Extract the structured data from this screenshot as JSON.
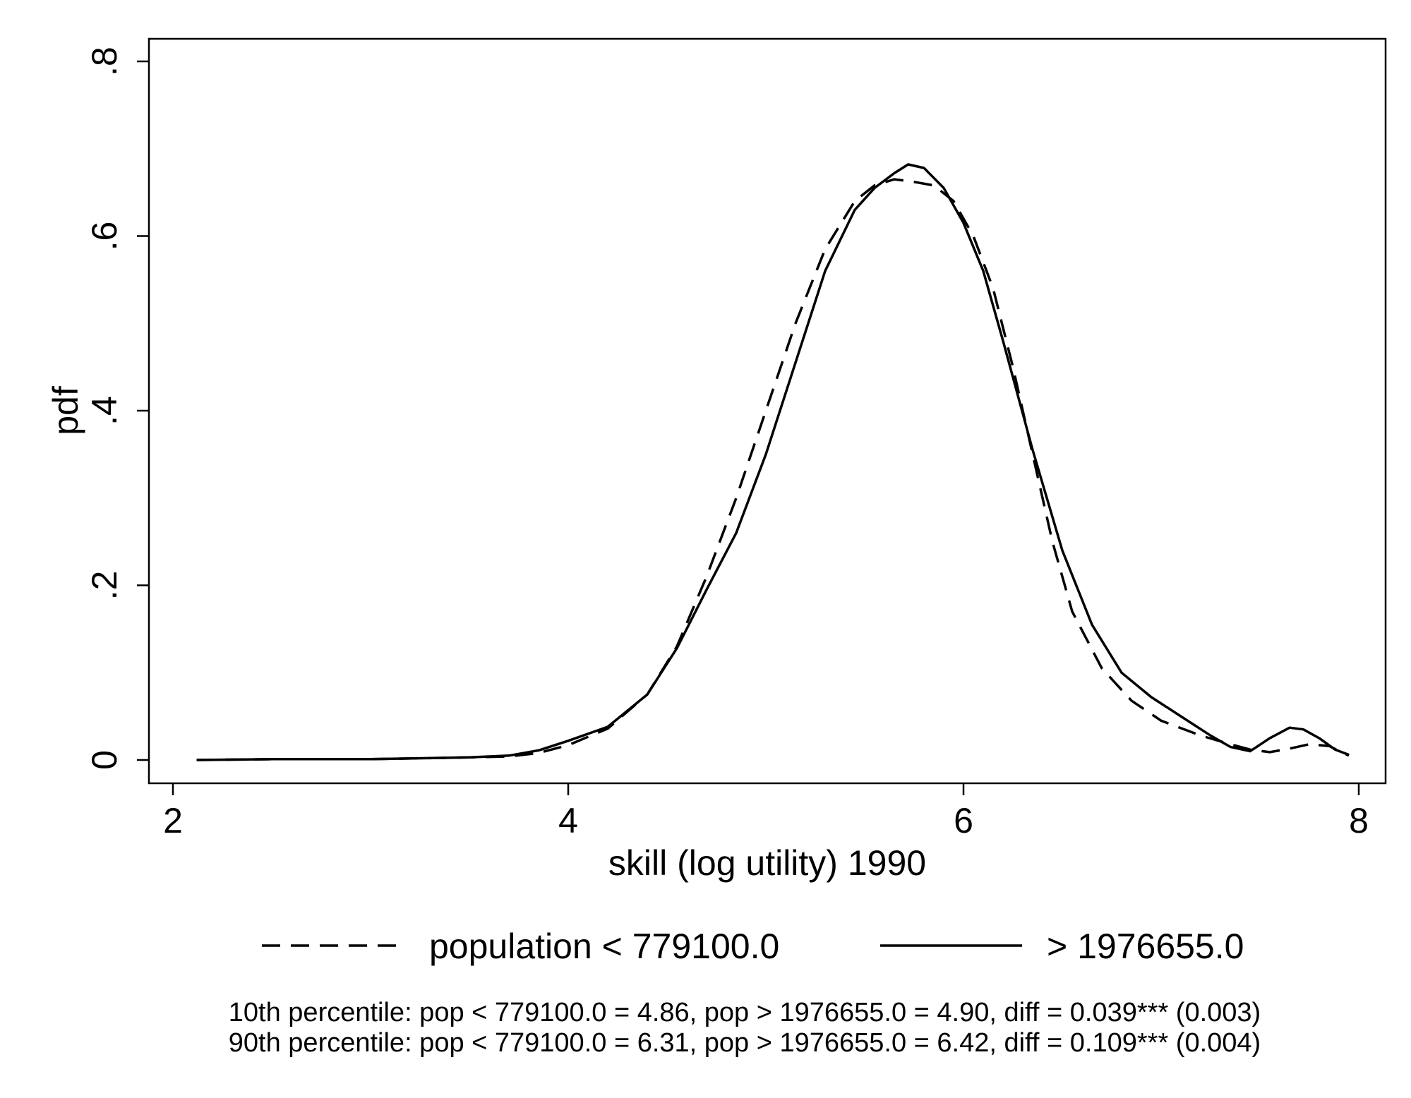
{
  "chart_data": {
    "type": "line",
    "xlabel": "skill (log utility) 1990",
    "ylabel": "pdf",
    "xlim": [
      2,
      8
    ],
    "ylim": [
      0,
      0.8
    ],
    "x_ticks": [
      2,
      4,
      6,
      8
    ],
    "x_tick_labels": [
      "2",
      "4",
      "6",
      "8"
    ],
    "y_ticks": [
      0,
      0.2,
      0.4,
      0.6,
      0.8
    ],
    "y_tick_labels": [
      "0",
      ".2",
      ".4",
      ".6",
      ".8"
    ],
    "grid": false,
    "legend_position": "bottom",
    "series": [
      {
        "name": "population < 779100.0",
        "style": "dashed",
        "color": "#000000",
        "x": [
          2.12,
          2.5,
          3.0,
          3.5,
          3.7,
          3.85,
          4.0,
          4.2,
          4.4,
          4.55,
          4.7,
          4.85,
          5.0,
          5.15,
          5.3,
          5.45,
          5.55,
          5.65,
          5.75,
          5.85,
          5.95,
          6.05,
          6.15,
          6.25,
          6.35,
          6.45,
          6.55,
          6.7,
          6.85,
          7.0,
          7.2,
          7.35,
          7.45,
          7.55,
          7.65,
          7.75,
          7.85,
          7.95
        ],
        "y": [
          0.0,
          0.001,
          0.001,
          0.003,
          0.004,
          0.008,
          0.017,
          0.036,
          0.075,
          0.13,
          0.21,
          0.3,
          0.4,
          0.5,
          0.585,
          0.64,
          0.658,
          0.665,
          0.662,
          0.658,
          0.64,
          0.6,
          0.54,
          0.45,
          0.35,
          0.25,
          0.17,
          0.105,
          0.068,
          0.045,
          0.028,
          0.018,
          0.012,
          0.009,
          0.013,
          0.018,
          0.016,
          0.005
        ]
      },
      {
        "name": "> 1976655.0",
        "style": "solid",
        "color": "#000000",
        "x": [
          2.12,
          2.5,
          3.0,
          3.5,
          3.7,
          3.85,
          4.0,
          4.2,
          4.4,
          4.55,
          4.7,
          4.85,
          5.0,
          5.15,
          5.3,
          5.45,
          5.55,
          5.65,
          5.72,
          5.8,
          5.9,
          6.0,
          6.1,
          6.2,
          6.35,
          6.5,
          6.65,
          6.8,
          6.95,
          7.1,
          7.25,
          7.35,
          7.45,
          7.55,
          7.65,
          7.72,
          7.8,
          7.88,
          7.95
        ],
        "y": [
          0.0,
          0.001,
          0.001,
          0.003,
          0.005,
          0.011,
          0.022,
          0.038,
          0.075,
          0.128,
          0.195,
          0.26,
          0.35,
          0.455,
          0.56,
          0.63,
          0.655,
          0.672,
          0.682,
          0.678,
          0.655,
          0.615,
          0.56,
          0.48,
          0.355,
          0.24,
          0.155,
          0.1,
          0.072,
          0.05,
          0.028,
          0.015,
          0.01,
          0.025,
          0.037,
          0.035,
          0.025,
          0.012,
          0.006
        ]
      }
    ],
    "notes": [
      "10th percentile: pop < 779100.0 = 4.86, pop > 1976655.0 = 4.90, diff = 0.039*** (0.003)",
      "90th percentile: pop < 779100.0 = 6.31, pop > 1976655.0 = 6.42, diff = 0.109*** (0.004)"
    ]
  }
}
